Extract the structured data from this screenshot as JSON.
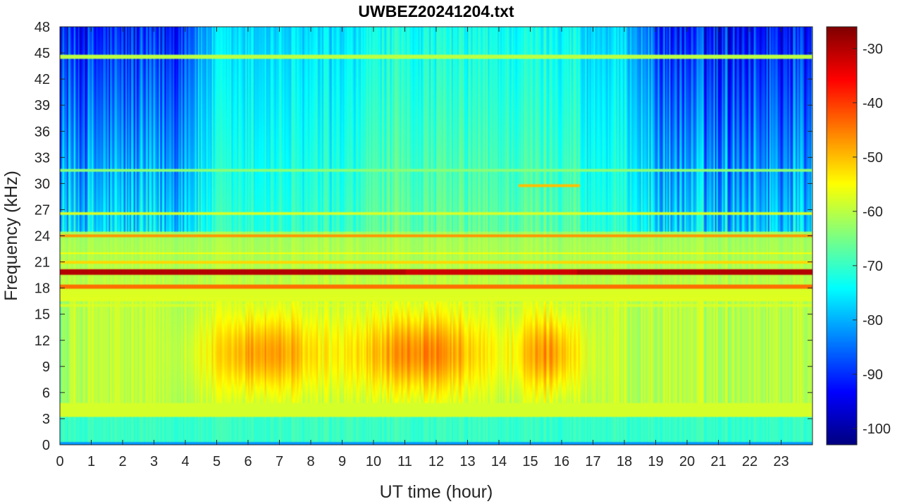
{
  "chart_data": {
    "type": "heatmap",
    "title": "UWBEZ20241204.txt",
    "xlabel": "UT time (hour)",
    "ylabel": "Frequency (kHz)",
    "xlim": [
      0,
      24
    ],
    "ylim": [
      0,
      48
    ],
    "x_ticks": [
      "0",
      "1",
      "2",
      "3",
      "4",
      "5",
      "6",
      "7",
      "8",
      "9",
      "10",
      "11",
      "12",
      "13",
      "14",
      "15",
      "16",
      "17",
      "18",
      "19",
      "20",
      "21",
      "22",
      "23"
    ],
    "y_ticks": [
      "0",
      "3",
      "6",
      "9",
      "12",
      "15",
      "18",
      "21",
      "24",
      "27",
      "30",
      "33",
      "36",
      "39",
      "42",
      "45",
      "48"
    ],
    "colorbar": {
      "colormap": "jet",
      "range": [
        -103,
        -26
      ],
      "ticks": [
        "-30",
        "-40",
        "-50",
        "-60",
        "-70",
        "-80",
        "-90",
        "-100"
      ]
    },
    "narrowband_lines_khz": [
      19.8,
      18.2,
      24.0,
      21.0,
      44.5,
      4.0,
      3.6
    ],
    "hiss_band": {
      "freq_khz": [
        5,
        16
      ],
      "peak_hours": [
        [
          4.5,
          8.5
        ],
        [
          9.5,
          14.5
        ],
        [
          14.7,
          17.0
        ]
      ]
    },
    "colors": {
      "axes": "#262626",
      "background": "#ffffff"
    }
  }
}
